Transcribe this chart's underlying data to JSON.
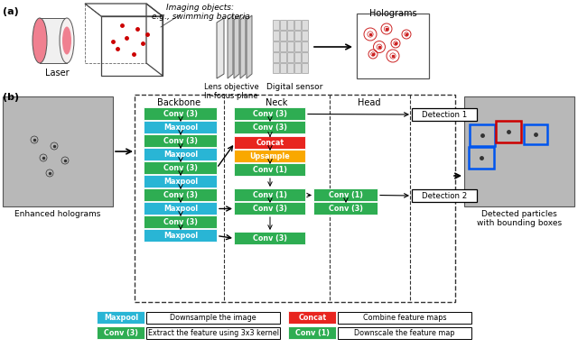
{
  "bg": "#ffffff",
  "cyan": "#29B5D5",
  "green": "#2EAD52",
  "red": "#E8251F",
  "orange": "#F9A800",
  "backbone": [
    [
      "Conv (3)",
      "green"
    ],
    [
      "Maxpool",
      "cyan"
    ],
    [
      "Conv (3)",
      "green"
    ],
    [
      "Maxpool",
      "cyan"
    ],
    [
      "Conv (3)",
      "green"
    ],
    [
      "Maxpool",
      "cyan"
    ],
    [
      "Conv (3)",
      "green"
    ],
    [
      "Maxpool",
      "cyan"
    ],
    [
      "Conv (3)",
      "green"
    ],
    [
      "Maxpool",
      "cyan"
    ]
  ],
  "neck_main": [
    [
      "Conv (3)",
      "green"
    ],
    [
      "Conv (3)",
      "green"
    ],
    [
      "Concat",
      "red"
    ],
    [
      "Upsample",
      "orange"
    ],
    [
      "Conv (1)",
      "green"
    ],
    [
      "Conv (1)",
      "green"
    ],
    [
      "Conv (3)",
      "green"
    ],
    [
      "Conv (3)",
      "green"
    ]
  ],
  "neck_right_col": [
    [
      "Conv (1)",
      "green"
    ],
    [
      "Conv (3)",
      "green"
    ]
  ],
  "legend": [
    [
      "cyan",
      "Maxpool",
      "Downsample the image",
      "red",
      "Concat",
      "Combine feature maps"
    ],
    [
      "green",
      "Conv (3)",
      "Extract the feature using 3x3 kernel",
      "green",
      "Conv (1)",
      "Downscale the feature map"
    ]
  ]
}
